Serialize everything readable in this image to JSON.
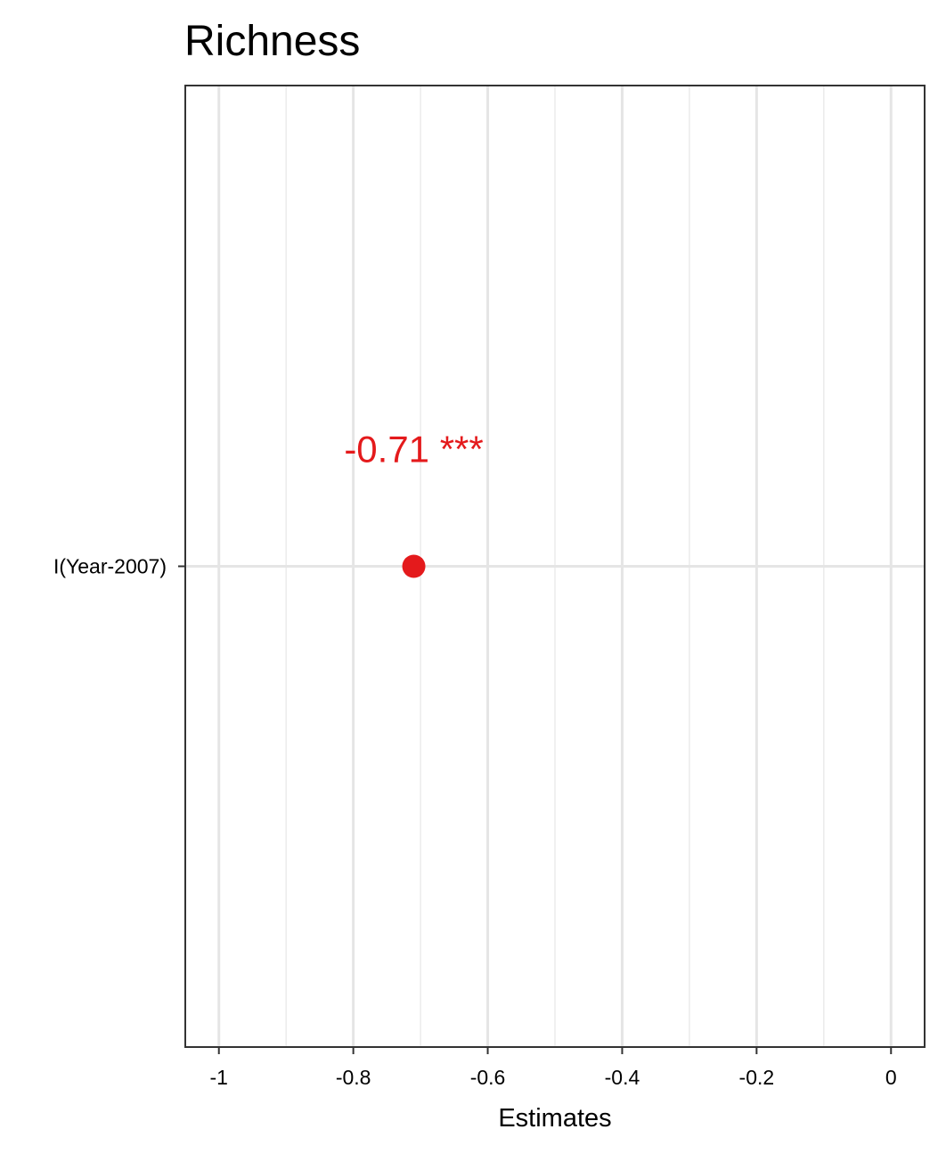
{
  "chart_data": {
    "type": "scatter",
    "title": "Richness",
    "xlabel": "Estimates",
    "ylabel": "",
    "xlim": [
      -1.05,
      0.05
    ],
    "x_ticks": [
      -1,
      -0.8,
      -0.6,
      -0.4,
      -0.2,
      0
    ],
    "x_tick_labels": [
      "-1",
      "-0.8",
      "-0.6",
      "-0.4",
      "-0.2",
      "0"
    ],
    "x_minor_ticks": [
      -0.9,
      -0.7,
      -0.5,
      -0.3,
      -0.1
    ],
    "categories": [
      "I(Year-2007)"
    ],
    "points": [
      {
        "term": "I(Year-2007)",
        "estimate": -0.71,
        "label": "-0.71 ***",
        "color": "#e41a1c"
      }
    ],
    "grid": true,
    "legend": "none"
  }
}
